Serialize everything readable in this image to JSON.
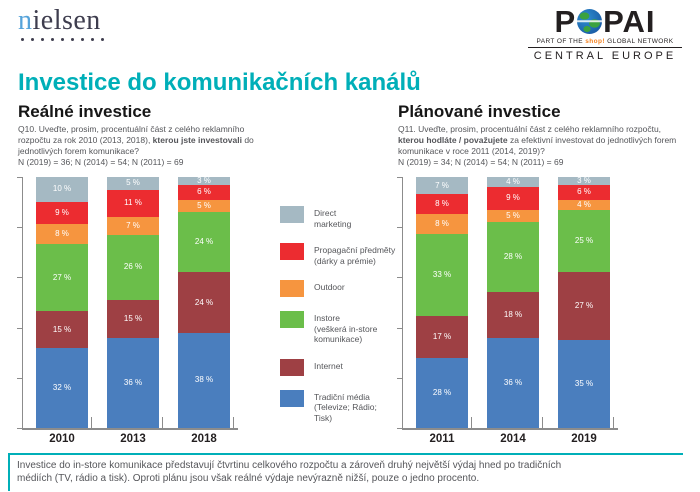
{
  "page_title": "Investice do komunikačních kanálů",
  "logos": {
    "nielsen": {
      "word_first_letter": "n",
      "word_rest": "ielsen"
    },
    "popai": {
      "word_left": "P",
      "word_right": "PAI",
      "network_pre": "PART OF THE ",
      "network_shop": "shop!",
      "network_post": " GLOBAL NETWORK",
      "region": "CENTRAL EUROPE"
    }
  },
  "charts": {
    "real": {
      "title": "Reálné investice",
      "q_pre": "Q10. Uveďte, prosim, procentuální část z celého reklamního rozpočtu za rok 2010 (2013, 2018), ",
      "q_bold": "kterou jste investovali",
      "q_post": " do jednotlivých forem komunikace?",
      "n_line": "N (2019) = 36; N (2014) = 54; N (2011) = 69"
    },
    "planned": {
      "title": "Plánované investice",
      "q_pre": "Q11. Uveďte, prosim, procentuální část z celého reklamního rozpočtu, ",
      "q_bold": "kterou hodláte / považujete",
      "q_post": " za efektivní investovat do jednotlivých forem komunikace v roce 2011 (2014, 2019)?",
      "n_line": "N (2019) = 34; N (2014) = 54; N (2011) = 69"
    }
  },
  "legend": {
    "items": [
      {
        "label": "Direct\nmarketing",
        "color": "#A5B9C3"
      },
      {
        "label": "Propagační předměty\n(dárky a prémie)",
        "color": "#EC2C30"
      },
      {
        "label": "Outdoor",
        "color": "#F6953F"
      },
      {
        "label": "Instore\n(veškerá in-store\nkomunikace)",
        "color": "#6BBE4A"
      },
      {
        "label": "Internet",
        "color": "#9E4044"
      },
      {
        "label": "Tradiční média\n(Televize; Rádio; Tisk)",
        "color": "#4A7EBE"
      }
    ]
  },
  "note": {
    "text": "Investice do in-store komunikace představují čtvrtinu celkového rozpočtu a zároveň druhý největší výdaj hned po tradičních\nmédiích (TV, rádio a tisk). Oproti plánu jsou však reálné výdaje nevýrazně nižší, pouze o jedno procento."
  },
  "colors": {
    "accent_teal": "#00AFB8",
    "axis_gray": "#8C8C8C",
    "text_gray": "#55565A",
    "nielsen_blue": "#55A3DA",
    "popai_orange": "#F58220"
  },
  "chart_data": [
    {
      "type": "bar",
      "stacked": true,
      "title": "Reálné investice",
      "unit": "%",
      "ylim": [
        0,
        100
      ],
      "grid": false,
      "value_labels": "inside, white",
      "categories": [
        "2010",
        "2013",
        "2018"
      ],
      "series": [
        {
          "name": "Tradiční média (Televize; Rádio; Tisk)",
          "color": "#4A7EBE",
          "values": [
            32,
            36,
            38
          ]
        },
        {
          "name": "Internet",
          "color": "#9E4044",
          "values": [
            15,
            15,
            24
          ]
        },
        {
          "name": "Instore (veškerá in-store komunikace)",
          "color": "#6BBE4A",
          "values": [
            27,
            26,
            24
          ]
        },
        {
          "name": "Outdoor",
          "color": "#F6953F",
          "values": [
            8,
            7,
            5
          ]
        },
        {
          "name": "Propagační předměty (dárky a prémie)",
          "color": "#EC2C30",
          "values": [
            9,
            11,
            6
          ]
        },
        {
          "name": "Direct marketing",
          "color": "#A5B9C3",
          "values": [
            10,
            5,
            3
          ]
        }
      ]
    },
    {
      "type": "bar",
      "stacked": true,
      "title": "Plánované investice",
      "unit": "%",
      "ylim": [
        0,
        100
      ],
      "grid": false,
      "value_labels": "inside, white",
      "categories": [
        "2011",
        "2014",
        "2019"
      ],
      "series": [
        {
          "name": "Tradiční média (Televize; Rádio; Tisk)",
          "color": "#4A7EBE",
          "values": [
            28,
            36,
            35
          ]
        },
        {
          "name": "Internet",
          "color": "#9E4044",
          "values": [
            17,
            18,
            27
          ]
        },
        {
          "name": "Instore (veškerá in-store komunikace)",
          "color": "#6BBE4A",
          "values": [
            33,
            28,
            25
          ]
        },
        {
          "name": "Outdoor",
          "color": "#F6953F",
          "values": [
            8,
            5,
            4
          ]
        },
        {
          "name": "Propagační předměty (dárky a prémie)",
          "color": "#EC2C30",
          "values": [
            8,
            9,
            6
          ]
        },
        {
          "name": "Direct marketing",
          "color": "#A5B9C3",
          "values": [
            7,
            4,
            3
          ]
        }
      ]
    }
  ]
}
